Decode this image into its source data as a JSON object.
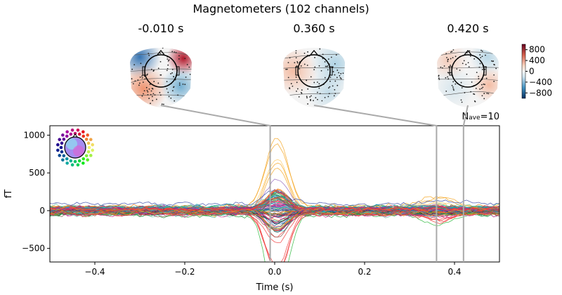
{
  "chart_data": {
    "type": "line",
    "title": "Magnetometers (102 channels)",
    "xlabel": "Time (s)",
    "ylabel": "fT",
    "xlim": [
      -0.5,
      0.5
    ],
    "ylim": [
      -680,
      1125
    ],
    "xticks": [
      -0.4,
      -0.2,
      0.0,
      0.2,
      0.4
    ],
    "xtick_labels": [
      "−0.4",
      "−0.2",
      "0.0",
      "0.2",
      "0.4"
    ],
    "yticks": [
      1000,
      500,
      0,
      -500
    ],
    "ytick_labels": [
      "1000",
      "500",
      "0",
      "−500"
    ],
    "n_channels": 102,
    "peak_value_approx": 1080,
    "trough_value_approx": -560,
    "topomaps": [
      {
        "time": -0.01,
        "label": "-0.010 s"
      },
      {
        "time": 0.36,
        "label": "0.360 s"
      },
      {
        "time": 0.42,
        "label": "0.420 s"
      }
    ],
    "annotation": {
      "prefix": "N",
      "subscript": "ave",
      "suffix": "=10"
    },
    "colorbar": {
      "ticks": [
        800,
        400,
        0,
        -400,
        -800
      ],
      "tick_labels": [
        "800",
        "400",
        "0",
        "−400",
        "−800"
      ],
      "colormap": "RdBu_r",
      "range": [
        -1000,
        1000
      ]
    },
    "grid": false
  }
}
